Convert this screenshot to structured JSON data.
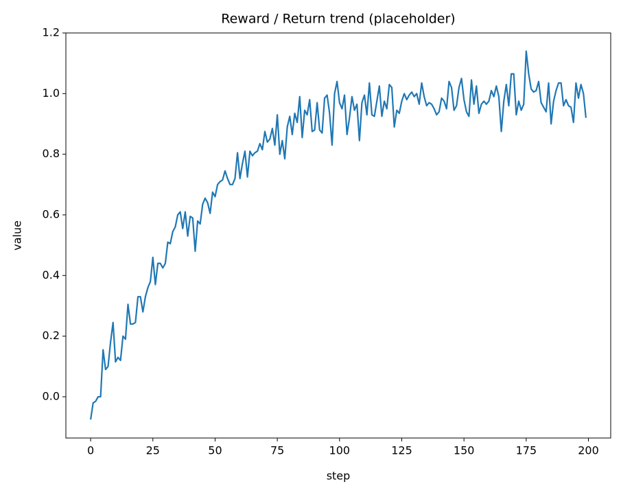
{
  "chart_data": {
    "type": "line",
    "title": "Reward / Return trend (placeholder)",
    "x_label": "step",
    "y_label": "value",
    "color": "#1f77b4",
    "x": [
      0,
      1,
      2,
      3,
      4,
      5,
      6,
      7,
      8,
      9,
      10,
      11,
      12,
      13,
      14,
      15,
      16,
      17,
      18,
      19,
      20,
      21,
      22,
      23,
      24,
      25,
      26,
      27,
      28,
      29,
      30,
      31,
      32,
      33,
      34,
      35,
      36,
      37,
      38,
      39,
      40,
      41,
      42,
      43,
      44,
      45,
      46,
      47,
      48,
      49,
      50,
      51,
      52,
      53,
      54,
      55,
      56,
      57,
      58,
      59,
      60,
      61,
      62,
      63,
      64,
      65,
      66,
      67,
      68,
      69,
      70,
      71,
      72,
      73,
      74,
      75,
      76,
      77,
      78,
      79,
      80,
      81,
      82,
      83,
      84,
      85,
      86,
      87,
      88,
      89,
      90,
      91,
      92,
      93,
      94,
      95,
      96,
      97,
      98,
      99,
      100,
      101,
      102,
      103,
      104,
      105,
      106,
      107,
      108,
      109,
      110,
      111,
      112,
      113,
      114,
      115,
      116,
      117,
      118,
      119,
      120,
      121,
      122,
      123,
      124,
      125,
      126,
      127,
      128,
      129,
      130,
      131,
      132,
      133,
      134,
      135,
      136,
      137,
      138,
      139,
      140,
      141,
      142,
      143,
      144,
      145,
      146,
      147,
      148,
      149,
      150,
      151,
      152,
      153,
      154,
      155,
      156,
      157,
      158,
      159,
      160,
      161,
      162,
      163,
      164,
      165,
      166,
      167,
      168,
      169,
      170,
      171,
      172,
      173,
      174,
      175,
      176,
      177,
      178,
      179,
      180,
      181,
      182,
      183,
      184,
      185,
      186,
      187,
      188,
      189,
      190,
      191,
      192,
      193,
      194,
      195,
      196,
      197,
      198,
      199
    ],
    "values": [
      -0.075,
      -0.02,
      -0.015,
      0.0,
      0.0,
      0.155,
      0.09,
      0.1,
      0.18,
      0.245,
      0.115,
      0.13,
      0.12,
      0.2,
      0.19,
      0.305,
      0.24,
      0.24,
      0.245,
      0.33,
      0.33,
      0.28,
      0.33,
      0.36,
      0.38,
      0.46,
      0.37,
      0.44,
      0.44,
      0.425,
      0.44,
      0.51,
      0.505,
      0.545,
      0.56,
      0.6,
      0.61,
      0.555,
      0.61,
      0.53,
      0.595,
      0.59,
      0.48,
      0.58,
      0.57,
      0.635,
      0.655,
      0.64,
      0.605,
      0.675,
      0.66,
      0.7,
      0.71,
      0.715,
      0.745,
      0.72,
      0.7,
      0.7,
      0.72,
      0.805,
      0.72,
      0.77,
      0.81,
      0.725,
      0.81,
      0.795,
      0.805,
      0.81,
      0.835,
      0.815,
      0.875,
      0.84,
      0.85,
      0.885,
      0.83,
      0.93,
      0.8,
      0.845,
      0.785,
      0.89,
      0.925,
      0.865,
      0.935,
      0.905,
      0.99,
      0.855,
      0.945,
      0.93,
      0.98,
      0.875,
      0.88,
      0.97,
      0.88,
      0.87,
      0.985,
      0.995,
      0.935,
      0.83,
      1.0,
      1.04,
      0.97,
      0.95,
      0.995,
      0.865,
      0.92,
      0.99,
      0.945,
      0.965,
      0.845,
      0.97,
      0.995,
      0.93,
      1.035,
      0.93,
      0.925,
      0.975,
      1.025,
      0.925,
      0.975,
      0.95,
      1.03,
      1.02,
      0.89,
      0.945,
      0.935,
      0.975,
      1.0,
      0.98,
      0.995,
      1.005,
      0.99,
      1.0,
      0.965,
      1.035,
      0.99,
      0.96,
      0.97,
      0.965,
      0.95,
      0.93,
      0.94,
      0.985,
      0.975,
      0.95,
      1.04,
      1.02,
      0.945,
      0.96,
      1.02,
      1.05,
      0.98,
      0.94,
      0.925,
      1.045,
      0.965,
      1.025,
      0.935,
      0.965,
      0.975,
      0.965,
      0.975,
      1.01,
      0.99,
      1.025,
      0.99,
      0.875,
      0.975,
      1.03,
      0.96,
      1.065,
      1.065,
      0.93,
      0.975,
      0.945,
      0.965,
      1.14,
      1.065,
      1.015,
      1.005,
      1.01,
      1.04,
      0.97,
      0.955,
      0.94,
      1.035,
      0.9,
      0.975,
      1.01,
      1.035,
      1.035,
      0.96,
      0.98,
      0.96,
      0.955,
      0.905,
      1.035,
      0.985,
      1.03,
      1.0,
      0.92
    ],
    "xlim": [
      -9.95,
      208.95
    ],
    "xticks": [
      0,
      25,
      50,
      75,
      100,
      125,
      150,
      175,
      200
    ],
    "ylim": [
      -0.136,
      1.2
    ],
    "yticks": [
      {
        "value": 0,
        "label": "0.0"
      },
      0.2,
      0.4,
      0.6,
      0.8,
      {
        "value": 1,
        "label": "1.0"
      },
      1.2
    ]
  }
}
